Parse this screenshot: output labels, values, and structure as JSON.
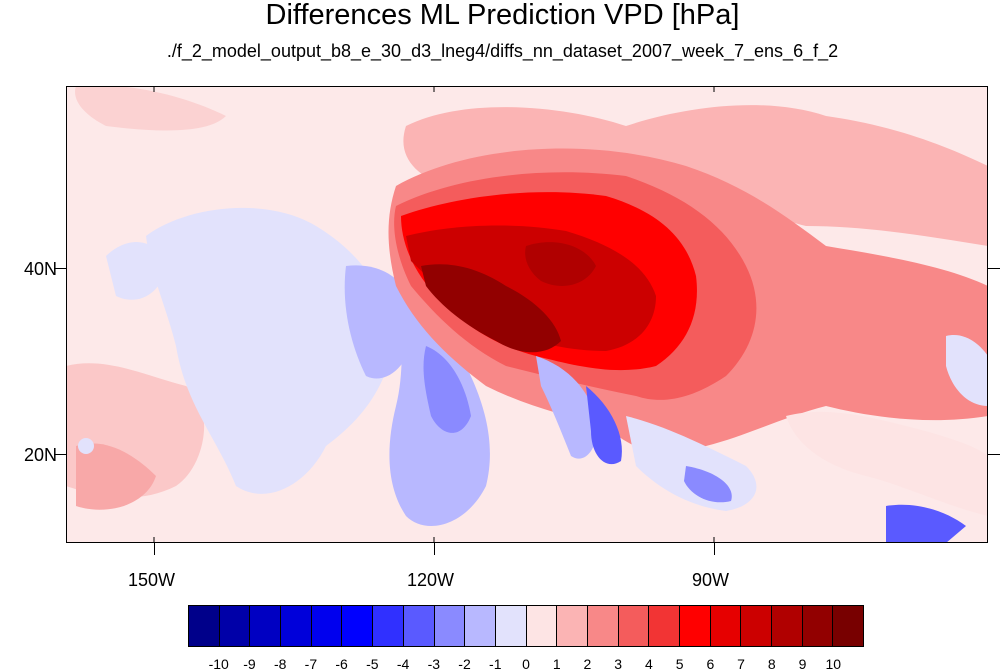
{
  "title": "Differences ML Prediction VPD [hPa]",
  "subtitle": "./f_2_model_output_b8_e_30_d3_lneg4/diffs_nn_dataset_2007_week_7_ens_6_f_2",
  "map": {
    "region": "North America and eastern Pacific",
    "lat_labels": [
      "40N",
      "20N"
    ],
    "lon_labels": [
      "150W",
      "120W",
      "90W"
    ]
  },
  "colorbar": {
    "labels": [
      "-10",
      "-9",
      "-8",
      "-7",
      "-6",
      "-5",
      "-4",
      "-3",
      "-2",
      "-1",
      "0",
      "1",
      "2",
      "3",
      "4",
      "5",
      "6",
      "7",
      "8",
      "9",
      "10"
    ],
    "colors": [
      "#00008a",
      "#0000a8",
      "#0000c2",
      "#0000da",
      "#0000ee",
      "#0000ff",
      "#3030ff",
      "#5a5aff",
      "#8a8aff",
      "#b8b8ff",
      "#e2e2fc",
      "#fde4e4",
      "#fbb4b4",
      "#f88888",
      "#f45c5c",
      "#f23434",
      "#ff0000",
      "#e60000",
      "#cc0000",
      "#b00000",
      "#920000",
      "#780000"
    ]
  },
  "legend_colors": {
    "ocean_neutral": "#fde9e9",
    "weak_negative": "#e2e2fc",
    "moderate_negative": "#b8b8ff",
    "strong_positive": "#c00000"
  }
}
